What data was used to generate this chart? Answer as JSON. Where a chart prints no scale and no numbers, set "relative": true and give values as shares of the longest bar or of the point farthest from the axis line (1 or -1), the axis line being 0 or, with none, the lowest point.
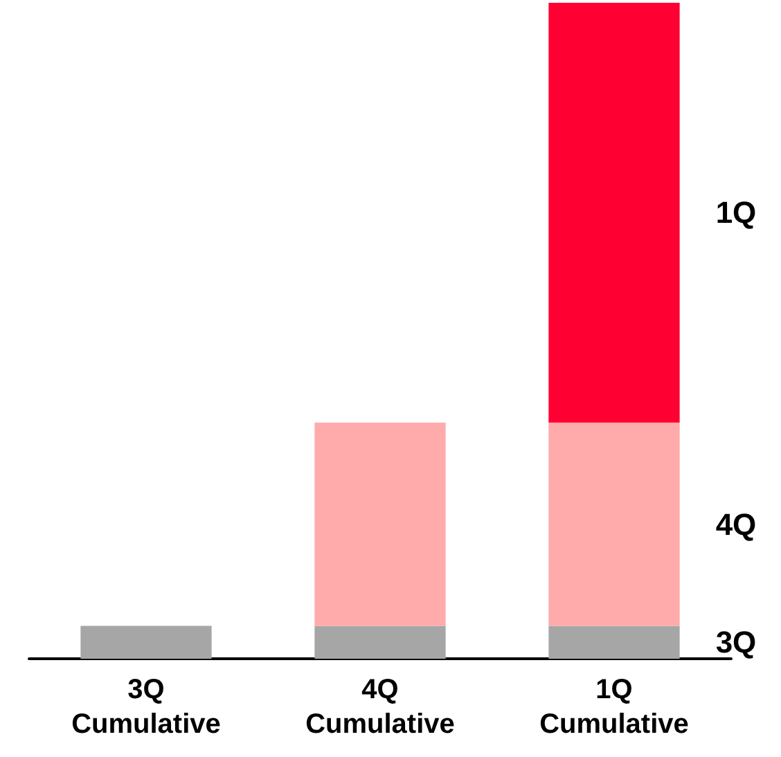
{
  "chart_data": {
    "type": "bar",
    "relative": true,
    "stacked": true,
    "categories": [
      "3Q\nCumulative",
      "4Q\nCumulative",
      "1Q\nCumulative"
    ],
    "series": [
      {
        "name": "3Q",
        "color": "#a6a6a6",
        "values": [
          0.05,
          0.05,
          0.05
        ]
      },
      {
        "name": "4Q",
        "color": "#ffabab",
        "values": [
          null,
          0.31,
          0.31
        ]
      },
      {
        "name": "1Q",
        "color": "#ff0033",
        "values": [
          null,
          null,
          0.64
        ]
      }
    ],
    "legend": false
  }
}
